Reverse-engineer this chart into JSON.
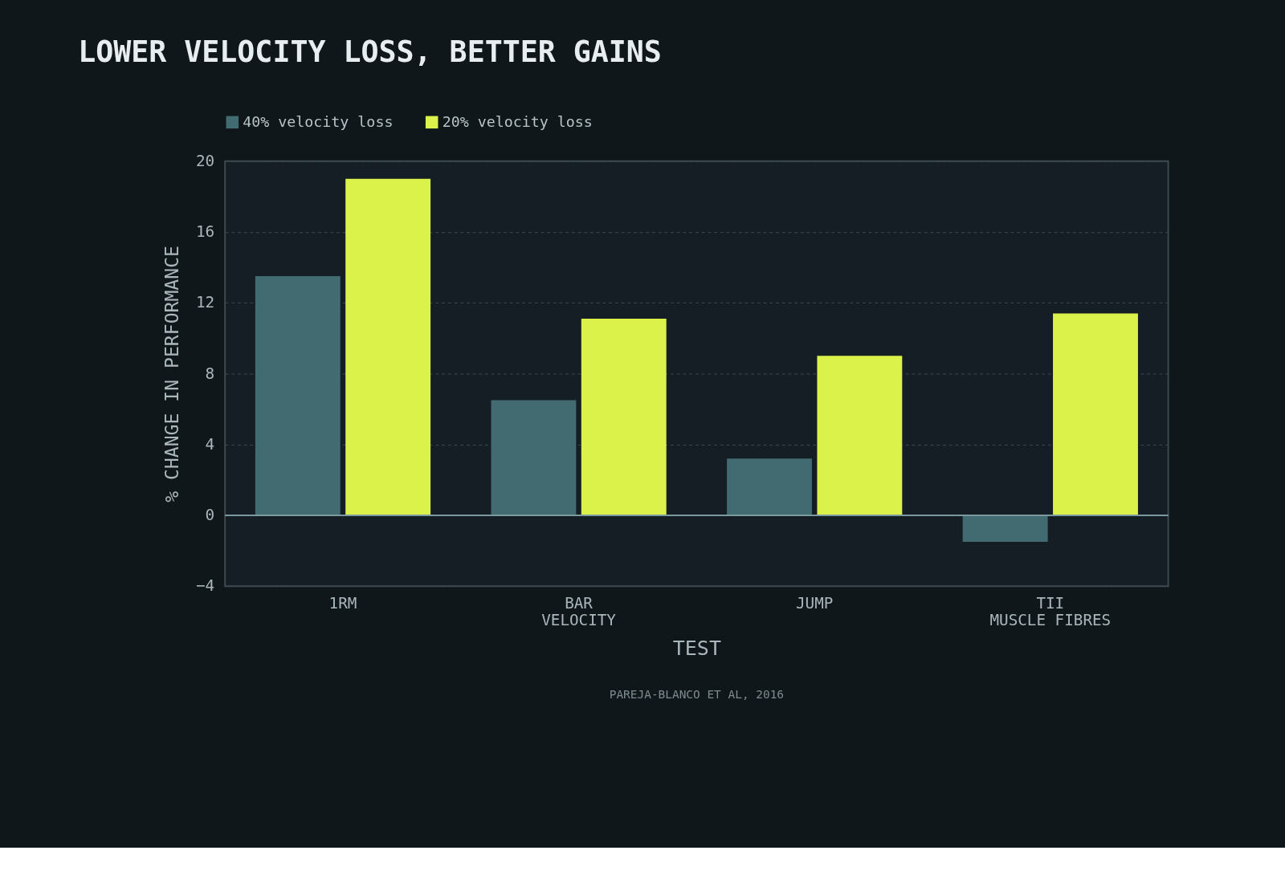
{
  "chart_data": {
    "type": "bar",
    "title": "LOWER VELOCITY LOSS, BETTER GAINS",
    "xlabel": "TEST",
    "ylabel": "% CHANGE IN PERFORMANCE",
    "categories": [
      "1RM",
      "BAR\nVELOCITY",
      "JUMP",
      "TII\nMUSCLE FIBRES"
    ],
    "series": [
      {
        "name": "40% velocity loss",
        "color": "#416b70",
        "values": [
          13.5,
          6.5,
          3.2,
          -1.5
        ]
      },
      {
        "name": "20% velocity loss",
        "color": "#daf24a",
        "values": [
          19,
          11.1,
          9,
          11.4
        ]
      }
    ],
    "ylim": [
      -4,
      20
    ],
    "yticks": [
      -4,
      0,
      4,
      8,
      12,
      16,
      20
    ],
    "grid": "y",
    "legend": "top left",
    "ref_lines": [
      {
        "axis": "y",
        "value": 0,
        "color": "#7a9aa0"
      }
    ],
    "annotations": [
      "PAREJA-BLANCO ET AL, 2016"
    ]
  }
}
